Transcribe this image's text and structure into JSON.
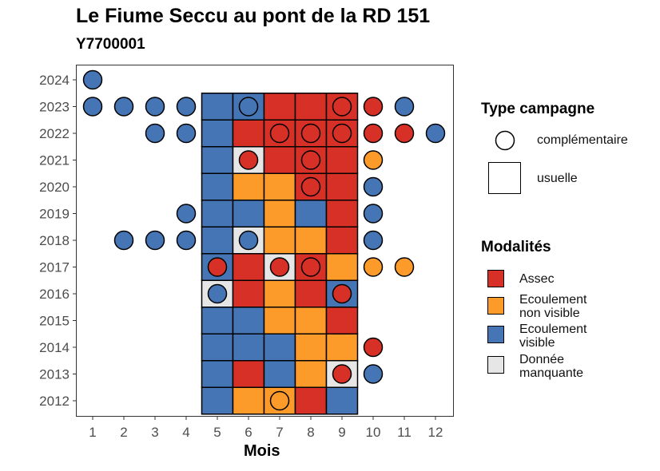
{
  "title": "Le Fiume Seccu au pont de la RD 151",
  "subtitle": "Y7700001",
  "chart_data": {
    "type": "scatter",
    "title": "Le Fiume Seccu au pont de la RD 151",
    "subtitle": "Y7700001",
    "xlabel": "Mois",
    "ylabel": "",
    "x_ticks": [
      "1",
      "2",
      "3",
      "4",
      "5",
      "6",
      "7",
      "8",
      "9",
      "10",
      "11",
      "12"
    ],
    "y_ticks": [
      "2012",
      "2013",
      "2014",
      "2015",
      "2016",
      "2017",
      "2018",
      "2019",
      "2020",
      "2021",
      "2022",
      "2023",
      "2024"
    ],
    "grid": false,
    "legend_position": "right",
    "colors": {
      "Assec": "#d73027",
      "Ecoulement non visible": "#fd9b2a",
      "Ecoulement visible": "#4575b4",
      "Donnée manquante": "#e6e6e6"
    },
    "usuelle": [
      {
        "year": 2012,
        "month": 5,
        "modalite": "Ecoulement visible"
      },
      {
        "year": 2012,
        "month": 6,
        "modalite": "Ecoulement non visible"
      },
      {
        "year": 2012,
        "month": 7,
        "modalite": "Ecoulement non visible"
      },
      {
        "year": 2012,
        "month": 8,
        "modalite": "Assec"
      },
      {
        "year": 2012,
        "month": 9,
        "modalite": "Ecoulement visible"
      },
      {
        "year": 2013,
        "month": 5,
        "modalite": "Ecoulement visible"
      },
      {
        "year": 2013,
        "month": 6,
        "modalite": "Assec"
      },
      {
        "year": 2013,
        "month": 7,
        "modalite": "Ecoulement visible"
      },
      {
        "year": 2013,
        "month": 8,
        "modalite": "Ecoulement non visible"
      },
      {
        "year": 2013,
        "month": 9,
        "modalite": "Donnée manquante"
      },
      {
        "year": 2014,
        "month": 5,
        "modalite": "Ecoulement visible"
      },
      {
        "year": 2014,
        "month": 6,
        "modalite": "Ecoulement visible"
      },
      {
        "year": 2014,
        "month": 7,
        "modalite": "Ecoulement visible"
      },
      {
        "year": 2014,
        "month": 8,
        "modalite": "Ecoulement non visible"
      },
      {
        "year": 2014,
        "month": 9,
        "modalite": "Ecoulement non visible"
      },
      {
        "year": 2015,
        "month": 5,
        "modalite": "Ecoulement visible"
      },
      {
        "year": 2015,
        "month": 6,
        "modalite": "Ecoulement visible"
      },
      {
        "year": 2015,
        "month": 7,
        "modalite": "Ecoulement non visible"
      },
      {
        "year": 2015,
        "month": 8,
        "modalite": "Ecoulement non visible"
      },
      {
        "year": 2015,
        "month": 9,
        "modalite": "Assec"
      },
      {
        "year": 2016,
        "month": 5,
        "modalite": "Donnée manquante"
      },
      {
        "year": 2016,
        "month": 6,
        "modalite": "Assec"
      },
      {
        "year": 2016,
        "month": 7,
        "modalite": "Ecoulement non visible"
      },
      {
        "year": 2016,
        "month": 8,
        "modalite": "Assec"
      },
      {
        "year": 2016,
        "month": 9,
        "modalite": "Ecoulement visible"
      },
      {
        "year": 2017,
        "month": 5,
        "modalite": "Ecoulement visible"
      },
      {
        "year": 2017,
        "month": 6,
        "modalite": "Assec"
      },
      {
        "year": 2017,
        "month": 7,
        "modalite": "Donnée manquante"
      },
      {
        "year": 2017,
        "month": 8,
        "modalite": "Assec"
      },
      {
        "year": 2017,
        "month": 9,
        "modalite": "Ecoulement non visible"
      },
      {
        "year": 2018,
        "month": 5,
        "modalite": "Ecoulement visible"
      },
      {
        "year": 2018,
        "month": 6,
        "modalite": "Donnée manquante"
      },
      {
        "year": 2018,
        "month": 7,
        "modalite": "Ecoulement non visible"
      },
      {
        "year": 2018,
        "month": 8,
        "modalite": "Ecoulement non visible"
      },
      {
        "year": 2018,
        "month": 9,
        "modalite": "Assec"
      },
      {
        "year": 2019,
        "month": 5,
        "modalite": "Ecoulement visible"
      },
      {
        "year": 2019,
        "month": 6,
        "modalite": "Ecoulement visible"
      },
      {
        "year": 2019,
        "month": 7,
        "modalite": "Ecoulement non visible"
      },
      {
        "year": 2019,
        "month": 8,
        "modalite": "Ecoulement visible"
      },
      {
        "year": 2019,
        "month": 9,
        "modalite": "Assec"
      },
      {
        "year": 2020,
        "month": 5,
        "modalite": "Ecoulement visible"
      },
      {
        "year": 2020,
        "month": 6,
        "modalite": "Ecoulement non visible"
      },
      {
        "year": 2020,
        "month": 7,
        "modalite": "Ecoulement non visible"
      },
      {
        "year": 2020,
        "month": 8,
        "modalite": "Assec"
      },
      {
        "year": 2020,
        "month": 9,
        "modalite": "Assec"
      },
      {
        "year": 2021,
        "month": 5,
        "modalite": "Ecoulement visible"
      },
      {
        "year": 2021,
        "month": 6,
        "modalite": "Donnée manquante"
      },
      {
        "year": 2021,
        "month": 7,
        "modalite": "Assec"
      },
      {
        "year": 2021,
        "month": 8,
        "modalite": "Assec"
      },
      {
        "year": 2021,
        "month": 9,
        "modalite": "Assec"
      },
      {
        "year": 2022,
        "month": 5,
        "modalite": "Ecoulement visible"
      },
      {
        "year": 2022,
        "month": 6,
        "modalite": "Assec"
      },
      {
        "year": 2022,
        "month": 7,
        "modalite": "Assec"
      },
      {
        "year": 2022,
        "month": 8,
        "modalite": "Assec"
      },
      {
        "year": 2022,
        "month": 9,
        "modalite": "Assec"
      },
      {
        "year": 2023,
        "month": 5,
        "modalite": "Ecoulement visible"
      },
      {
        "year": 2023,
        "month": 6,
        "modalite": "Ecoulement visible"
      },
      {
        "year": 2023,
        "month": 7,
        "modalite": "Assec"
      },
      {
        "year": 2023,
        "month": 8,
        "modalite": "Assec"
      },
      {
        "year": 2023,
        "month": 9,
        "modalite": "Assec"
      }
    ],
    "complementaire": [
      {
        "year": 2024,
        "month": 1,
        "modalite": "Ecoulement visible"
      },
      {
        "year": 2023,
        "month": 1,
        "modalite": "Ecoulement visible"
      },
      {
        "year": 2023,
        "month": 2,
        "modalite": "Ecoulement visible"
      },
      {
        "year": 2023,
        "month": 3,
        "modalite": "Ecoulement visible"
      },
      {
        "year": 2023,
        "month": 4,
        "modalite": "Ecoulement visible"
      },
      {
        "year": 2023,
        "month": 6,
        "modalite": "Ecoulement visible"
      },
      {
        "year": 2023,
        "month": 9,
        "modalite": "Assec"
      },
      {
        "year": 2023,
        "month": 10,
        "modalite": "Assec"
      },
      {
        "year": 2023,
        "month": 11,
        "modalite": "Ecoulement visible"
      },
      {
        "year": 2022,
        "month": 3,
        "modalite": "Ecoulement visible"
      },
      {
        "year": 2022,
        "month": 4,
        "modalite": "Ecoulement visible"
      },
      {
        "year": 2022,
        "month": 7,
        "modalite": "Assec"
      },
      {
        "year": 2022,
        "month": 8,
        "modalite": "Assec"
      },
      {
        "year": 2022,
        "month": 9,
        "modalite": "Assec"
      },
      {
        "year": 2022,
        "month": 10,
        "modalite": "Assec"
      },
      {
        "year": 2022,
        "month": 11,
        "modalite": "Assec"
      },
      {
        "year": 2022,
        "month": 12,
        "modalite": "Ecoulement visible"
      },
      {
        "year": 2021,
        "month": 6,
        "modalite": "Assec"
      },
      {
        "year": 2021,
        "month": 8,
        "modalite": "Assec"
      },
      {
        "year": 2021,
        "month": 10,
        "modalite": "Ecoulement non visible"
      },
      {
        "year": 2020,
        "month": 8,
        "modalite": "Assec"
      },
      {
        "year": 2020,
        "month": 10,
        "modalite": "Ecoulement visible"
      },
      {
        "year": 2019,
        "month": 4,
        "modalite": "Ecoulement visible"
      },
      {
        "year": 2019,
        "month": 10,
        "modalite": "Ecoulement visible"
      },
      {
        "year": 2018,
        "month": 2,
        "modalite": "Ecoulement visible"
      },
      {
        "year": 2018,
        "month": 3,
        "modalite": "Ecoulement visible"
      },
      {
        "year": 2018,
        "month": 4,
        "modalite": "Ecoulement visible"
      },
      {
        "year": 2018,
        "month": 6,
        "modalite": "Ecoulement visible"
      },
      {
        "year": 2018,
        "month": 10,
        "modalite": "Ecoulement visible"
      },
      {
        "year": 2017,
        "month": 5,
        "modalite": "Assec"
      },
      {
        "year": 2017,
        "month": 7,
        "modalite": "Assec"
      },
      {
        "year": 2017,
        "month": 8,
        "modalite": "Assec"
      },
      {
        "year": 2017,
        "month": 10,
        "modalite": "Ecoulement non visible"
      },
      {
        "year": 2017,
        "month": 11,
        "modalite": "Ecoulement non visible"
      },
      {
        "year": 2016,
        "month": 5,
        "modalite": "Ecoulement visible"
      },
      {
        "year": 2016,
        "month": 9,
        "modalite": "Assec"
      },
      {
        "year": 2014,
        "month": 10,
        "modalite": "Assec"
      },
      {
        "year": 2013,
        "month": 9,
        "modalite": "Assec"
      },
      {
        "year": 2013,
        "month": 10,
        "modalite": "Ecoulement visible"
      },
      {
        "year": 2012,
        "month": 7,
        "modalite": "Ecoulement non visible"
      }
    ]
  },
  "legend": {
    "type_title": "Type campagne",
    "type_items": [
      "complémentaire",
      "usuelle"
    ],
    "modalites_title": "Modalités",
    "modalites_items": [
      {
        "line1": "Assec",
        "line2": ""
      },
      {
        "line1": "Ecoulement",
        "line2": "non visible"
      },
      {
        "line1": "Ecoulement",
        "line2": "visible"
      },
      {
        "line1": "Donnée",
        "line2": "manquante"
      }
    ]
  }
}
